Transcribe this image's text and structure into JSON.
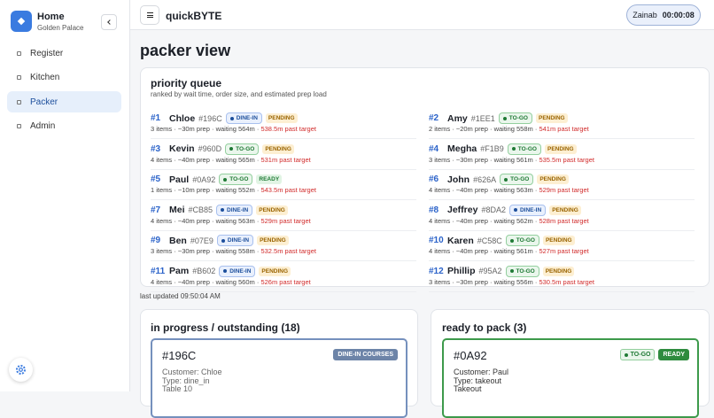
{
  "sidebar": {
    "brand_title": "Home",
    "brand_subtitle": "Golden Palace",
    "nav": [
      "Register",
      "Kitchen",
      "Packer",
      "Admin"
    ]
  },
  "topbar": {
    "app_name": "quickBYTE",
    "user": "Zainab",
    "timer": "00:00:08"
  },
  "page": {
    "title": "packer view",
    "queue": {
      "title": "priority queue",
      "subtitle": "ranked by wait time, order size, and estimated prep load",
      "items": [
        {
          "rank": "#1",
          "name": "Chloe",
          "id": "#196C",
          "type": "DINE-IN",
          "status": "PENDING",
          "details": "3 items · ~30m prep · waiting 564m ·",
          "late": "538.5m past target"
        },
        {
          "rank": "#2",
          "name": "Amy",
          "id": "#1EE1",
          "type": "TO-GO",
          "status": "PENDING",
          "details": "2 items · ~20m prep · waiting 558m ·",
          "late": "541m past target"
        },
        {
          "rank": "#3",
          "name": "Kevin",
          "id": "#960D",
          "type": "TO-GO",
          "status": "PENDING",
          "details": "4 items · ~40m prep · waiting 565m ·",
          "late": "531m past target"
        },
        {
          "rank": "#4",
          "name": "Megha",
          "id": "#F1B9",
          "type": "TO-GO",
          "status": "PENDING",
          "details": "3 items · ~30m prep · waiting 561m ·",
          "late": "535.5m past target"
        },
        {
          "rank": "#5",
          "name": "Paul",
          "id": "#0A92",
          "type": "TO-GO",
          "status": "READY",
          "details": "1 items · ~10m prep · waiting 552m ·",
          "late": "543.5m past target"
        },
        {
          "rank": "#6",
          "name": "John",
          "id": "#626A",
          "type": "TO-GO",
          "status": "PENDING",
          "details": "4 items · ~40m prep · waiting 563m ·",
          "late": "529m past target"
        },
        {
          "rank": "#7",
          "name": "Mei",
          "id": "#CB85",
          "type": "DINE-IN",
          "status": "PENDING",
          "details": "4 items · ~40m prep · waiting 563m ·",
          "late": "529m past target"
        },
        {
          "rank": "#8",
          "name": "Jeffrey",
          "id": "#8DA2",
          "type": "DINE-IN",
          "status": "PENDING",
          "details": "4 items · ~40m prep · waiting 562m ·",
          "late": "528m past target"
        },
        {
          "rank": "#9",
          "name": "Ben",
          "id": "#07E9",
          "type": "DINE-IN",
          "status": "PENDING",
          "details": "3 items · ~30m prep · waiting 558m ·",
          "late": "532.5m past target"
        },
        {
          "rank": "#10",
          "name": "Karen",
          "id": "#C58C",
          "type": "TO-GO",
          "status": "PENDING",
          "details": "4 items · ~40m prep · waiting 561m ·",
          "late": "527m past target"
        },
        {
          "rank": "#11",
          "name": "Pam",
          "id": "#B602",
          "type": "DINE-IN",
          "status": "PENDING",
          "details": "4 items · ~40m prep · waiting 560m ·",
          "late": "526m past target"
        },
        {
          "rank": "#12",
          "name": "Phillip",
          "id": "#95A2",
          "type": "TO-GO",
          "status": "PENDING",
          "details": "3 items · ~30m prep · waiting 556m ·",
          "late": "530.5m past target"
        }
      ]
    },
    "last_updated": "last updated 09:50:04 AM",
    "in_progress": {
      "title": "in progress / outstanding (18)",
      "ticket": {
        "id": "#196C",
        "badges": [
          "DINE-IN COURSES"
        ],
        "lines": [
          "Customer: Chloe",
          "Type: dine_in",
          "Table 10"
        ]
      }
    },
    "ready": {
      "title": "ready to pack (3)",
      "ticket": {
        "id": "#0A92",
        "badges": [
          "TO-GO",
          "READY"
        ],
        "lines": [
          "Customer: Paul",
          "Type: takeout",
          "Takeout"
        ]
      }
    }
  }
}
